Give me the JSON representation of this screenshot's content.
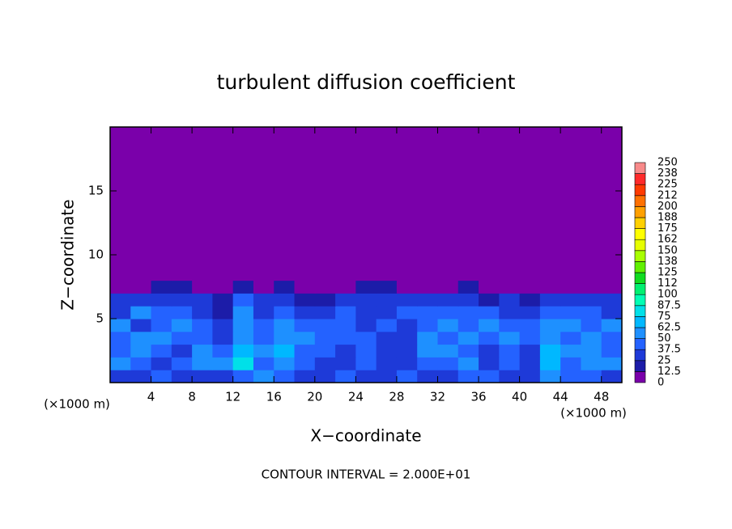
{
  "chart_data": {
    "type": "heatmap",
    "title": "turbulent diffusion coefficient",
    "x_label": "X−coordinate",
    "y_label": "Z−coordinate",
    "x_unit": "(×1000 m)",
    "footer": "CONTOUR INTERVAL = 2.000E+01",
    "xlim": [
      0,
      50
    ],
    "ylim": [
      0,
      20
    ],
    "xticks": [
      4,
      8,
      12,
      16,
      20,
      24,
      28,
      32,
      36,
      40,
      44,
      48
    ],
    "yticks": [
      5,
      10,
      15
    ],
    "xbins": [
      0,
      2,
      4,
      6,
      8,
      10,
      12,
      14,
      16,
      18,
      20,
      22,
      24,
      26,
      28,
      30,
      32,
      34,
      36,
      38,
      40,
      42,
      44,
      46,
      48,
      50
    ],
    "ybins": [
      0,
      1,
      2,
      3,
      4,
      5,
      6,
      7,
      8,
      20
    ],
    "z": [
      [
        30,
        35,
        40,
        30,
        25,
        30,
        45,
        60,
        40,
        30,
        35,
        40,
        30,
        35,
        40,
        30,
        35,
        40,
        45,
        30,
        35,
        60,
        40,
        45,
        30
      ],
      [
        55,
        45,
        35,
        40,
        50,
        60,
        80,
        45,
        60,
        40,
        35,
        30,
        40,
        30,
        35,
        45,
        40,
        55,
        30,
        40,
        30,
        65,
        45,
        50,
        55
      ],
      [
        45,
        60,
        40,
        35,
        55,
        40,
        70,
        50,
        65,
        45,
        40,
        35,
        45,
        25,
        30,
        50,
        55,
        40,
        35,
        45,
        35,
        70,
        50,
        60,
        45
      ],
      [
        40,
        50,
        55,
        40,
        45,
        35,
        60,
        45,
        55,
        50,
        45,
        40,
        40,
        35,
        30,
        55,
        45,
        50,
        40,
        55,
        45,
        60,
        45,
        50,
        40
      ],
      [
        50,
        35,
        45,
        55,
        40,
        25,
        55,
        40,
        60,
        45,
        40,
        45,
        35,
        40,
        35,
        45,
        55,
        45,
        50,
        45,
        40,
        55,
        50,
        40,
        55
      ],
      [
        35,
        50,
        40,
        45,
        30,
        20,
        50,
        35,
        45,
        30,
        35,
        40,
        30,
        35,
        40,
        40,
        45,
        40,
        40,
        35,
        30,
        45,
        40,
        45,
        35
      ],
      [
        25,
        35,
        30,
        35,
        25,
        15,
        40,
        30,
        35,
        20,
        20,
        30,
        25,
        25,
        30,
        25,
        35,
        35,
        20,
        25,
        20,
        35,
        30,
        30,
        25
      ],
      [
        0,
        10,
        15,
        20,
        5,
        0,
        20,
        10,
        20,
        0,
        0,
        5,
        15,
        15,
        10,
        0,
        10,
        15,
        5,
        0,
        0,
        10,
        5,
        5,
        0
      ],
      [
        0,
        0,
        0,
        0,
        0,
        0,
        0,
        0,
        0,
        0,
        0,
        0,
        0,
        0,
        0,
        0,
        0,
        0,
        0,
        0,
        0,
        0,
        0,
        0,
        0
      ]
    ],
    "levels": [
      0,
      12.5,
      25,
      37.5,
      50,
      62.5,
      75,
      87.5,
      100,
      {
        "value": 112.5,
        "label": "112"
      },
      125,
      {
        "value": 137.5,
        "label": "138"
      },
      150,
      {
        "value": 162.5,
        "label": "162"
      },
      175,
      {
        "value": 187.5,
        "label": "188"
      },
      200,
      {
        "value": 212.5,
        "label": "212"
      },
      225,
      {
        "value": 237.5,
        "label": "238"
      },
      250
    ],
    "colors": [
      "#7a00aa",
      "#1c1ca8",
      "#1e3ad8",
      "#2462ff",
      "#1e90ff",
      "#00b8ff",
      "#00e0e8",
      "#00ffb4",
      "#00f070",
      "#10dc20",
      "#60f000",
      "#a8ff00",
      "#e6ff00",
      "#ffff00",
      "#ffd000",
      "#ffa000",
      "#ff7000",
      "#ff3a00",
      "#ff2a2a",
      "#f88a8a"
    ]
  }
}
